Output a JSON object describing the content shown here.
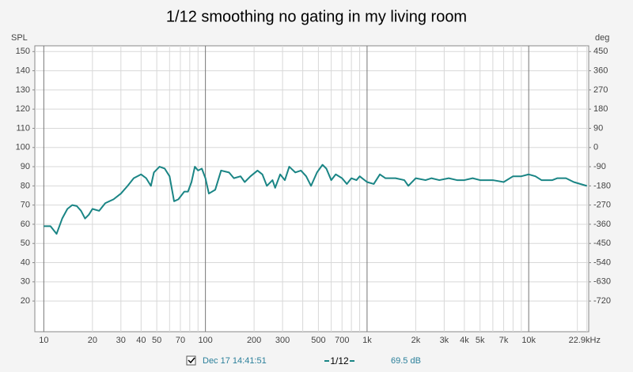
{
  "chart_data": {
    "type": "line",
    "title": "1/12 smoothing no gating in my living room",
    "y_axis_label": "SPL",
    "y2_axis_label": "deg",
    "log_x": true,
    "grid": true,
    "xlim": [
      8.8,
      23500
    ],
    "ylim": [
      4,
      153
    ],
    "y2lim": [
      -864,
      477
    ],
    "xticks": [
      10,
      20,
      30,
      40,
      50,
      70,
      100,
      200,
      300,
      500,
      700,
      {
        "value": 1000,
        "label": "1k"
      },
      {
        "value": 2000,
        "label": "2k"
      },
      {
        "value": 3000,
        "label": "3k"
      },
      {
        "value": 4000,
        "label": "4k"
      },
      {
        "value": 5000,
        "label": "5k"
      },
      {
        "value": 7000,
        "label": "7k"
      },
      {
        "value": 10000,
        "label": "10k"
      },
      {
        "value": 22900,
        "label": "22.9kHz"
      }
    ],
    "x_minor_ticks": [
      60,
      80,
      90,
      400,
      600,
      800,
      900,
      6000,
      8000,
      9000,
      20000
    ],
    "yticks": [
      20,
      30,
      40,
      50,
      60,
      70,
      80,
      90,
      100,
      110,
      120,
      130,
      140,
      150
    ],
    "y2ticks": [
      -720,
      -630,
      -540,
      -450,
      -360,
      -270,
      -180,
      -90,
      0,
      90,
      180,
      270,
      360,
      450
    ],
    "x": [
      10,
      11,
      12,
      13,
      14,
      15,
      16,
      17,
      18,
      19,
      20,
      22,
      24,
      27,
      30,
      33,
      36,
      40,
      43,
      46,
      48,
      52,
      56,
      60,
      64,
      68,
      74,
      78,
      82,
      86,
      90,
      95,
      100,
      105,
      115,
      125,
      140,
      150,
      165,
      175,
      190,
      210,
      225,
      240,
      260,
      270,
      290,
      310,
      330,
      360,
      390,
      420,
      450,
      490,
      530,
      560,
      600,
      640,
      700,
      750,
      800,
      860,
      900,
      1000,
      1100,
      1200,
      1300,
      1500,
      1700,
      1800,
      2000,
      2300,
      2500,
      2800,
      3200,
      3600,
      4000,
      4500,
      5000,
      6000,
      7000,
      8000,
      9000,
      10000,
      11000,
      12000,
      13000,
      14000,
      15000,
      17000,
      19000,
      22900
    ],
    "series": [
      {
        "name": "Dec 17 14:41:51",
        "color": "#1a8585",
        "values": [
          59,
          59,
          55,
          63,
          68,
          70,
          69.5,
          67,
          63,
          65,
          68,
          67,
          71,
          73,
          76,
          80,
          84,
          86,
          84,
          80,
          87,
          90,
          89,
          85,
          72,
          73,
          77,
          77,
          82,
          90,
          88,
          89,
          84,
          76,
          78,
          88,
          87,
          84,
          85,
          82,
          85,
          88,
          86,
          80,
          83,
          79,
          86,
          83,
          90,
          87,
          88,
          85,
          80,
          87,
          91,
          89,
          83,
          86,
          84,
          81,
          84,
          83,
          85,
          82,
          81,
          86,
          84,
          84,
          83,
          80,
          84,
          83,
          84,
          83,
          84,
          83,
          83,
          84,
          83,
          83,
          82,
          85,
          85,
          86,
          85,
          83,
          83,
          83,
          84,
          84,
          82,
          80
        ]
      }
    ],
    "smoothing": "1/12",
    "level": "69.5 dB"
  }
}
